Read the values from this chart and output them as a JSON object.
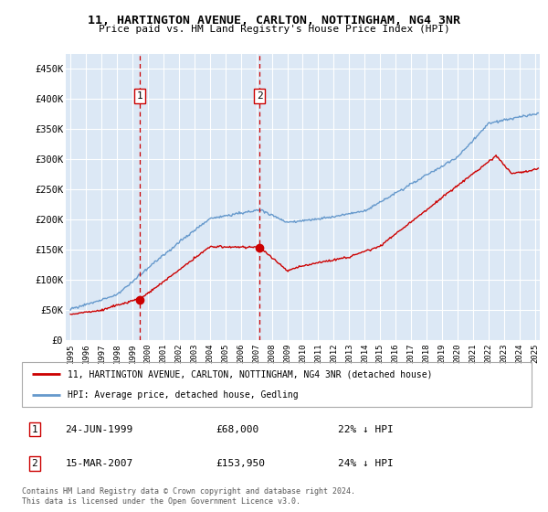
{
  "title": "11, HARTINGTON AVENUE, CARLTON, NOTTINGHAM, NG4 3NR",
  "subtitle": "Price paid vs. HM Land Registry's House Price Index (HPI)",
  "ylim": [
    0,
    475000
  ],
  "yticks": [
    0,
    50000,
    100000,
    150000,
    200000,
    250000,
    300000,
    350000,
    400000,
    450000
  ],
  "ytick_labels": [
    "£0",
    "£50K",
    "£100K",
    "£150K",
    "£200K",
    "£250K",
    "£300K",
    "£350K",
    "£400K",
    "£450K"
  ],
  "xlim_start": 1994.7,
  "xlim_end": 2025.3,
  "sale1_year": 1999.48,
  "sale1_price": 68000,
  "sale1_label": "24-JUN-1999",
  "sale1_amount": "£68,000",
  "sale1_hpi": "22% ↓ HPI",
  "sale2_year": 2007.2,
  "sale2_price": 153950,
  "sale2_label": "15-MAR-2007",
  "sale2_amount": "£153,950",
  "sale2_hpi": "24% ↓ HPI",
  "legend_line1": "11, HARTINGTON AVENUE, CARLTON, NOTTINGHAM, NG4 3NR (detached house)",
  "legend_line2": "HPI: Average price, detached house, Gedling",
  "footer": "Contains HM Land Registry data © Crown copyright and database right 2024.\nThis data is licensed under the Open Government Licence v3.0.",
  "line_color_red": "#cc0000",
  "line_color_blue": "#6699cc",
  "bg_color": "#dce8f5",
  "grid_color": "#ffffff",
  "dashed_color": "#cc0000",
  "shade_color": "#dce8f5"
}
